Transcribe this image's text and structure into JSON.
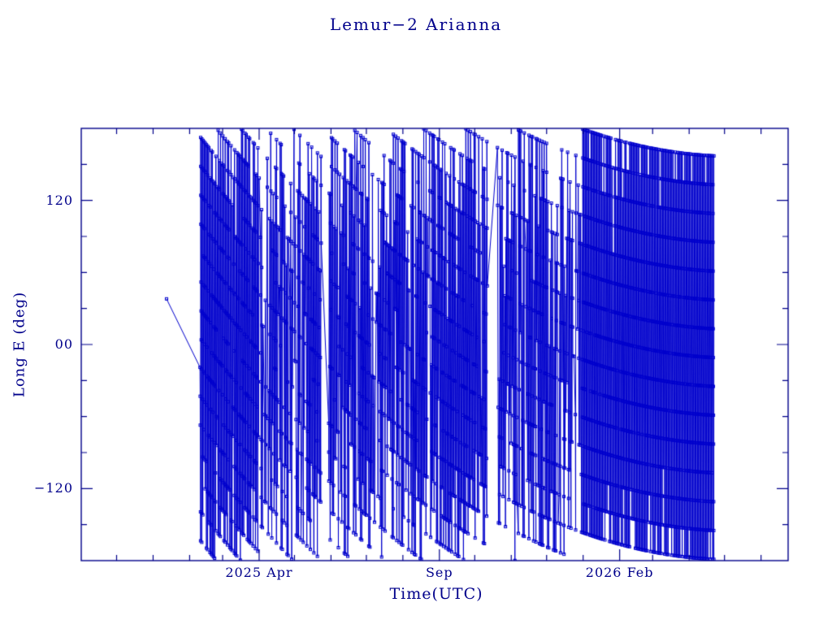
{
  "chart_data": {
    "type": "line",
    "title": "Lemur−2 Arianna",
    "xlabel": "Time(UTC)",
    "ylabel": "Long E (deg)",
    "ylim": [
      -180,
      180
    ],
    "x_domain_days": [
      0,
      600
    ],
    "y_major_ticks": [
      {
        "value": 120,
        "label": "120"
      },
      {
        "value": 0,
        "label": "00"
      },
      {
        "value": -120,
        "label": "−120"
      }
    ],
    "y_minor_ticks": [
      -150,
      -90,
      -60,
      -30,
      30,
      60,
      90,
      150
    ],
    "x_major_ticks": [
      {
        "day": 151,
        "label": "2025 Apr"
      },
      {
        "day": 304,
        "label": "Sep"
      },
      {
        "day": 457,
        "label": "2026 Feb"
      }
    ],
    "x_minor_ticks_days": [
      30,
      61,
      92,
      120,
      181,
      212,
      242,
      273,
      334,
      365,
      395,
      426,
      485,
      516,
      546,
      577
    ],
    "grid": false,
    "legend": null,
    "colors": {
      "background": "#ffffff",
      "axis": "#00008b",
      "text": "#00008b",
      "data": "#0000cd"
    },
    "marker": {
      "shape": "square",
      "size": 3
    },
    "initial_segment": [
      {
        "t": 72.4,
        "lon": 38
      },
      {
        "t": 100.8,
        "lon": -19
      }
    ],
    "generator": {
      "seed": 1337,
      "t_start": 100.9,
      "t_end": 537,
      "lon_start": -19,
      "deg_per_orbit": 24,
      "orbit_period": 0.06627,
      "eps0": 0.1,
      "t_flat": 555,
      "keep_base": 0.28,
      "density": [
        {
          "from": 100,
          "to": 150,
          "keep": 0.55
        },
        {
          "from": 298,
          "to": 335,
          "keep": 0.45
        },
        {
          "from": 425,
          "to": 537,
          "keep": 0.8
        }
      ],
      "gaps": [
        [
          204,
          210
        ],
        [
          345,
          353
        ]
      ]
    }
  }
}
